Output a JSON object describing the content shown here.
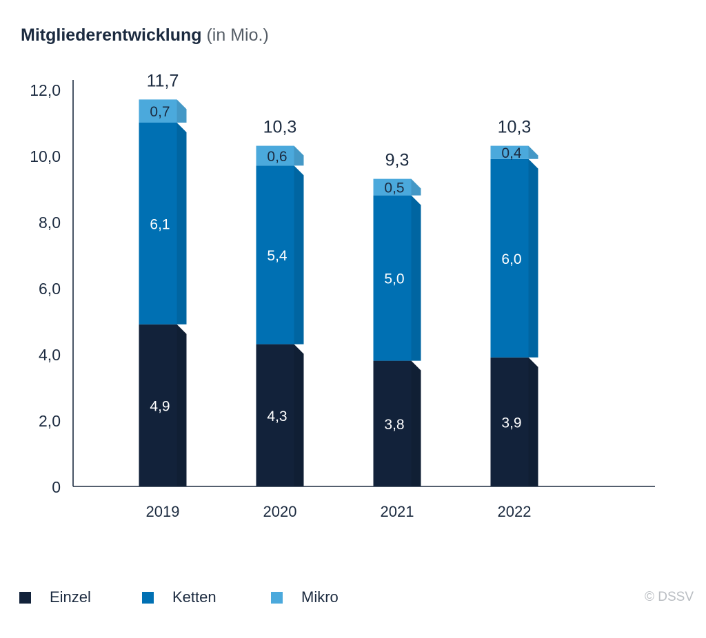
{
  "title": {
    "main": "Mitgliederentwicklung",
    "unit": "(in Mio.)"
  },
  "chart_data": {
    "type": "bar",
    "stacked": true,
    "categories": [
      "2019",
      "2020",
      "2021",
      "2022"
    ],
    "series": [
      {
        "name": "Einzel",
        "color": "#12223a",
        "values": [
          4.9,
          4.3,
          3.8,
          3.9
        ],
        "labels": [
          "4,9",
          "4,3",
          "3,8",
          "3,9"
        ]
      },
      {
        "name": "Ketten",
        "color": "#0070b3",
        "values": [
          6.1,
          5.4,
          5.0,
          6.0
        ],
        "labels": [
          "6,1",
          "5,4",
          "5,0",
          "6,0"
        ]
      },
      {
        "name": "Mikro",
        "color": "#4ba9dc",
        "values": [
          0.7,
          0.6,
          0.5,
          0.4
        ],
        "labels": [
          "0,7",
          "0,6",
          "0,5",
          "0,4"
        ]
      }
    ],
    "totals": [
      11.7,
      10.3,
      9.3,
      10.3
    ],
    "total_labels": [
      "11,7",
      "10,3",
      "9,3",
      "10,3"
    ],
    "y_ticks": [
      0,
      2,
      4,
      6,
      8,
      10,
      12
    ],
    "y_tick_labels": [
      "0",
      "2,0",
      "4,0",
      "6,0",
      "8,0",
      "10,0",
      "12,0"
    ],
    "ylim": [
      0,
      12
    ],
    "grid": false,
    "legend_position": "bottom-left"
  },
  "legend": [
    {
      "label": "Einzel",
      "color": "#12223a"
    },
    {
      "label": "Ketten",
      "color": "#0070b3"
    },
    {
      "label": "Mikro",
      "color": "#4ba9dc"
    }
  ],
  "copyright": "© DSSV"
}
